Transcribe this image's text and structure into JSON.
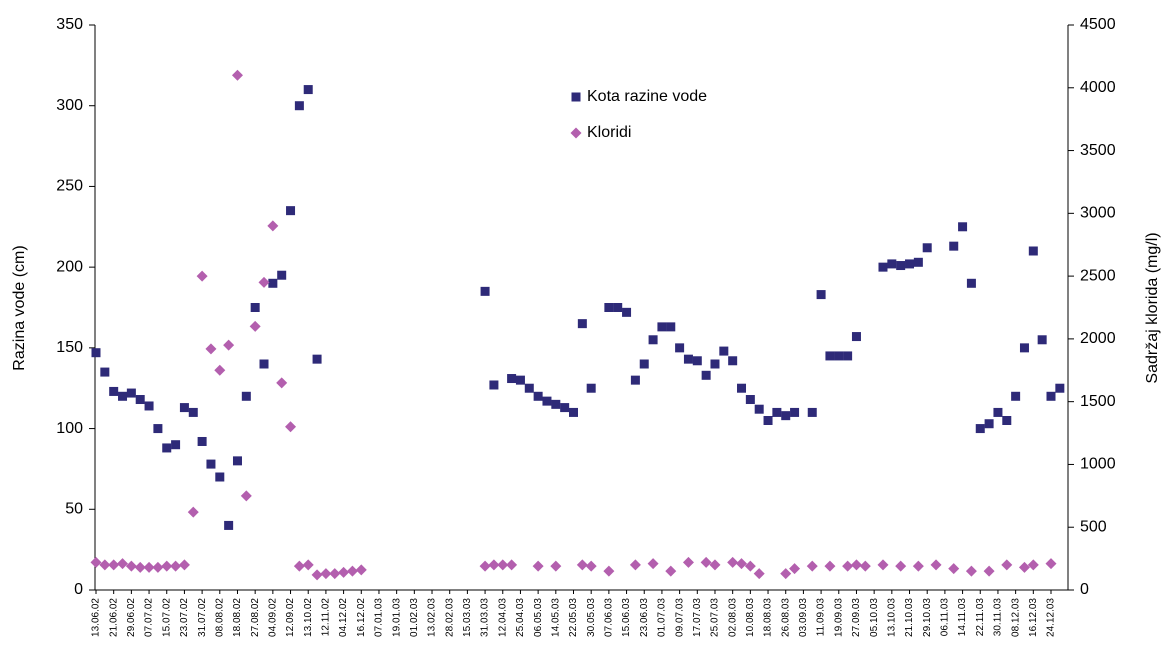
{
  "chart_data": {
    "type": "scatter",
    "y_label": "Razina vode (cm)",
    "y2_label": "Sadržaj klorida (mg/l)",
    "categories": [
      "13.06.02",
      null,
      "21.06.02",
      null,
      "29.06.02",
      null,
      "07.07.02",
      null,
      "15.07.02",
      null,
      "23.07.02",
      null,
      "31.07.02",
      null,
      "08.08.02",
      null,
      "18.08.02",
      null,
      "27.08.02",
      null,
      "04.09.02",
      null,
      "12.09.02",
      null,
      "13.10.02",
      null,
      "12.11.02",
      null,
      "04.12.02",
      null,
      "16.12.02",
      null,
      "07.01.03",
      null,
      "19.01.03",
      null,
      "01.02.03",
      null,
      "13.02.03",
      null,
      "28.02.03",
      null,
      "15.03.03",
      null,
      "31.03.03",
      null,
      "12.04.03",
      null,
      "25.04.03",
      null,
      "06.05.03",
      null,
      "14.05.03",
      null,
      "22.05.03",
      null,
      "30.05.03",
      null,
      "07.06.03",
      null,
      "15.06.03",
      null,
      "23.06.03",
      null,
      "01.07.03",
      null,
      "09.07.03",
      null,
      "17.07.03",
      null,
      "25.07.03",
      null,
      "02.08.03",
      null,
      "10.08.03",
      null,
      "18.08.03",
      null,
      "26.08.03",
      null,
      "03.09.03",
      null,
      "11.09.03",
      null,
      "19.09.03",
      null,
      "27.09.03",
      null,
      "05.10.03",
      null,
      "13.10.03",
      null,
      "21.10.03",
      null,
      "29.10.03",
      null,
      "06.11.03",
      null,
      "14.11.03",
      null,
      "22.11.03",
      null,
      "30.11.03",
      null,
      "08.12.03",
      null,
      "16.12.03",
      null,
      "24.12.03",
      null
    ],
    "series": [
      {
        "name": "Kota razine vode",
        "color": "#2e2a78",
        "marker": "square",
        "values": [
          147,
          135,
          123,
          120,
          122,
          118,
          114,
          100,
          88,
          90,
          113,
          110,
          92,
          78,
          70,
          40,
          80,
          120,
          175,
          140,
          190,
          195,
          235,
          300,
          310,
          143,
          null,
          null,
          null,
          null,
          null,
          null,
          null,
          null,
          null,
          null,
          null,
          null,
          null,
          null,
          null,
          null,
          null,
          null,
          185,
          127,
          null,
          131,
          130,
          125,
          120,
          117,
          115,
          113,
          110,
          165,
          125,
          null,
          175,
          175,
          172,
          130,
          140,
          155,
          163,
          163,
          150,
          143,
          142,
          133,
          140,
          148,
          142,
          125,
          118,
          112,
          105,
          110,
          108,
          110,
          null,
          110,
          183,
          145,
          145,
          145,
          157,
          null,
          null,
          200,
          202,
          201,
          202,
          203,
          212,
          null,
          null,
          213,
          225,
          190,
          100,
          103,
          110,
          105,
          120,
          150,
          210,
          155,
          120,
          125
        ]
      },
      {
        "name": "Kloridi",
        "color": "#b35fae",
        "marker": "diamond",
        "axis": "y2",
        "values": [
          220,
          200,
          200,
          210,
          190,
          180,
          180,
          180,
          190,
          190,
          200,
          620,
          2500,
          1920,
          1750,
          1950,
          4100,
          750,
          2100,
          2450,
          2900,
          1650,
          1300,
          190,
          200,
          120,
          130,
          130,
          140,
          150,
          160,
          null,
          null,
          null,
          null,
          null,
          null,
          null,
          null,
          null,
          null,
          null,
          null,
          null,
          190,
          200,
          200,
          200,
          null,
          null,
          190,
          null,
          190,
          null,
          null,
          200,
          190,
          null,
          150,
          null,
          null,
          200,
          null,
          210,
          null,
          150,
          null,
          220,
          null,
          220,
          200,
          null,
          220,
          210,
          190,
          130,
          null,
          null,
          130,
          170,
          null,
          190,
          null,
          190,
          null,
          190,
          200,
          190,
          null,
          200,
          null,
          190,
          null,
          190,
          null,
          200,
          null,
          170,
          null,
          150,
          null,
          150,
          null,
          200,
          null,
          180,
          200,
          null,
          210,
          null
        ]
      }
    ],
    "ylim": [
      0,
      350
    ],
    "yticks": [
      0,
      50,
      100,
      150,
      200,
      250,
      300,
      350
    ],
    "y2lim": [
      0,
      4500
    ],
    "y2ticks": [
      0,
      500,
      1000,
      1500,
      2000,
      2500,
      3000,
      3500,
      4000,
      4500
    ]
  }
}
